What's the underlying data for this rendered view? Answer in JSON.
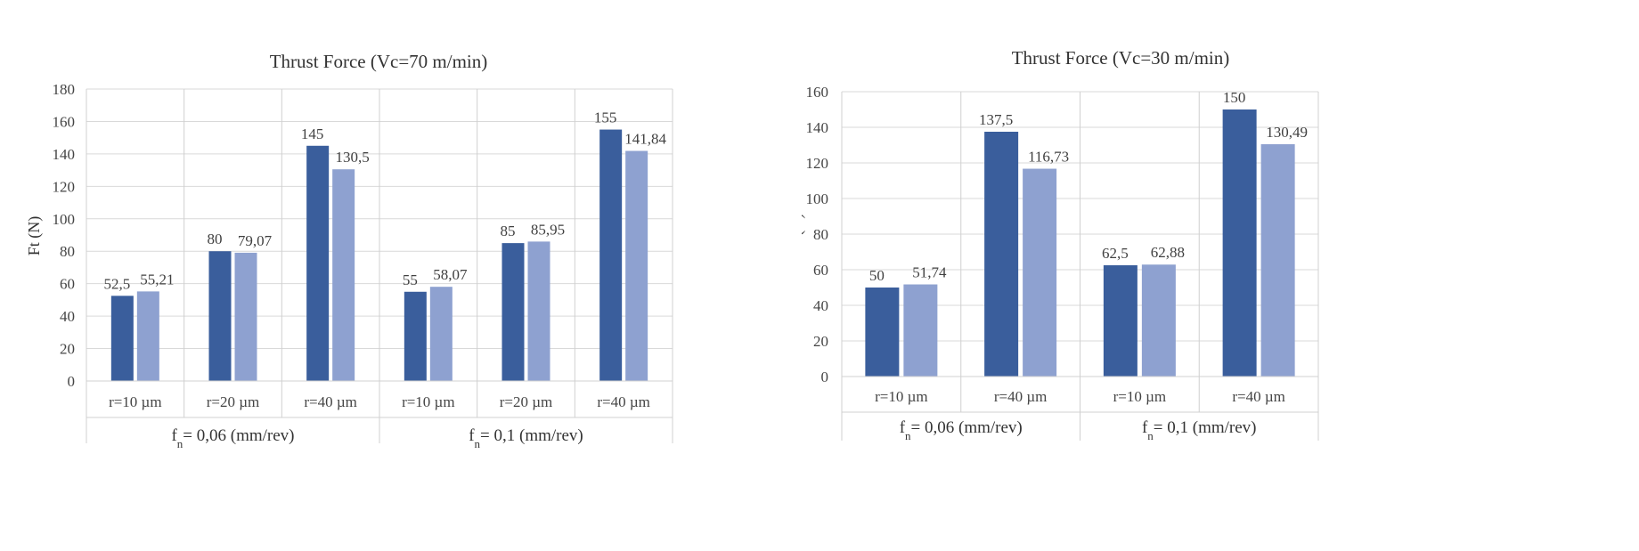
{
  "chart_data": [
    {
      "type": "bar",
      "title": "Thrust Force (Vc=70 m/min)",
      "ylabel": "Ft (N)",
      "xlabel": "",
      "ylim": [
        0,
        180
      ],
      "ytick_step": 20,
      "grid": true,
      "legend": "none",
      "groups": [
        {
          "label_main": "f",
          "label_sub": "n",
          "label_rest": "= 0,06 (mm/rev)",
          "categories": [
            "r=10 µm",
            "r=20 µm",
            "r=40 µm"
          ]
        },
        {
          "label_main": "f",
          "label_sub": "n",
          "label_rest": "= 0,1 (mm/rev)",
          "categories": [
            "r=10 µm",
            "r=20 µm",
            "r=40 µm"
          ]
        }
      ],
      "series": [
        {
          "name": "Series 1",
          "color": "#3a5e9c",
          "values": [
            52.5,
            80,
            145,
            55,
            85,
            155
          ],
          "labels": [
            "52,5",
            "80",
            "145",
            "55",
            "85",
            "155"
          ]
        },
        {
          "name": "Series 2",
          "color": "#8ea1d0",
          "values": [
            55.21,
            79.07,
            130.5,
            58.07,
            85.95,
            141.84
          ],
          "labels": [
            "55,21",
            "79,07",
            "130,5",
            "58,07",
            "85,95",
            "141,84"
          ]
        }
      ]
    },
    {
      "type": "bar",
      "title": "Thrust Force (Vc=30 m/min)",
      "ylabel": "Ft (N)",
      "xlabel": "",
      "ylim": [
        0,
        160
      ],
      "ytick_step": 20,
      "grid": true,
      "legend": "none",
      "groups": [
        {
          "label_main": "f",
          "label_sub": "n",
          "label_rest": "= 0,06 (mm/rev)",
          "categories": [
            "r=10 µm",
            "r=40 µm"
          ]
        },
        {
          "label_main": "f",
          "label_sub": "n",
          "label_rest": "= 0,1 (mm/rev)",
          "categories": [
            "r=10 µm",
            "r=40 µm"
          ]
        }
      ],
      "series": [
        {
          "name": "Series 1",
          "color": "#3a5e9c",
          "values": [
            50,
            137.5,
            62.5,
            150
          ],
          "labels": [
            "50",
            "137,5",
            "62,5",
            "150"
          ]
        },
        {
          "name": "Series 2",
          "color": "#8ea1d0",
          "values": [
            51.74,
            116.73,
            62.88,
            130.49
          ],
          "labels": [
            "51,74",
            "116,73",
            "62,88",
            "130,49"
          ]
        }
      ]
    }
  ]
}
